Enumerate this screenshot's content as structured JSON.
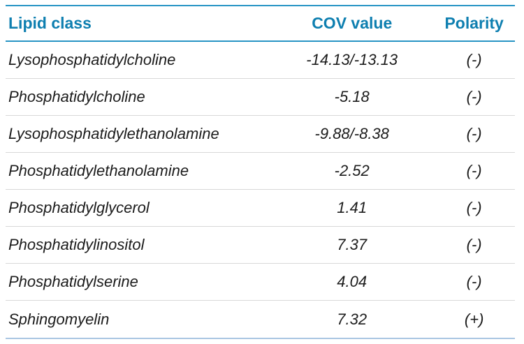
{
  "table": {
    "headers": [
      "Lipid class",
      "COV value",
      "Polarity"
    ],
    "rows": [
      {
        "lipid_class": "Lysophosphatidylcholine",
        "cov_value": "-14.13/-13.13",
        "polarity": "(-)"
      },
      {
        "lipid_class": "Phosphatidylcholine",
        "cov_value": "-5.18",
        "polarity": "(-)"
      },
      {
        "lipid_class": "Lysophosphatidylethanolamine",
        "cov_value": "-9.88/-8.38",
        "polarity": "(-)"
      },
      {
        "lipid_class": "Phosphatidylethanolamine",
        "cov_value": "-2.52",
        "polarity": "(-)"
      },
      {
        "lipid_class": "Phosphatidylglycerol",
        "cov_value": "1.41",
        "polarity": "(-)"
      },
      {
        "lipid_class": "Phosphatidylinositol",
        "cov_value": "7.37",
        "polarity": "(-)"
      },
      {
        "lipid_class": "Phosphatidylserine",
        "cov_value": "4.04",
        "polarity": "(-)"
      },
      {
        "lipid_class": "Sphingomyelin",
        "cov_value": "7.32",
        "polarity": "(+)"
      }
    ]
  },
  "colors": {
    "header_teal": "#0e7fb0",
    "rule_teal": "#2794c4",
    "row_divider": "#d8d8d8",
    "bottom_rule": "#aac6e2",
    "body_text": "#1c1c1c"
  },
  "chart_data": {
    "type": "table",
    "title": "",
    "columns": [
      "Lipid class",
      "COV value",
      "Polarity"
    ],
    "rows": [
      [
        "Lysophosphatidylcholine",
        "-14.13/-13.13",
        "(-)"
      ],
      [
        "Phosphatidylcholine",
        "-5.18",
        "(-)"
      ],
      [
        "Lysophosphatidylethanolamine",
        "-9.88/-8.38",
        "(-)"
      ],
      [
        "Phosphatidylethanolamine",
        "-2.52",
        "(-)"
      ],
      [
        "Phosphatidylglycerol",
        "1.41",
        "(-)"
      ],
      [
        "Phosphatidylinositol",
        "7.37",
        "(-)"
      ],
      [
        "Phosphatidylserine",
        "4.04",
        "(-)"
      ],
      [
        "Sphingomyelin",
        "7.32",
        "(+)"
      ]
    ]
  }
}
